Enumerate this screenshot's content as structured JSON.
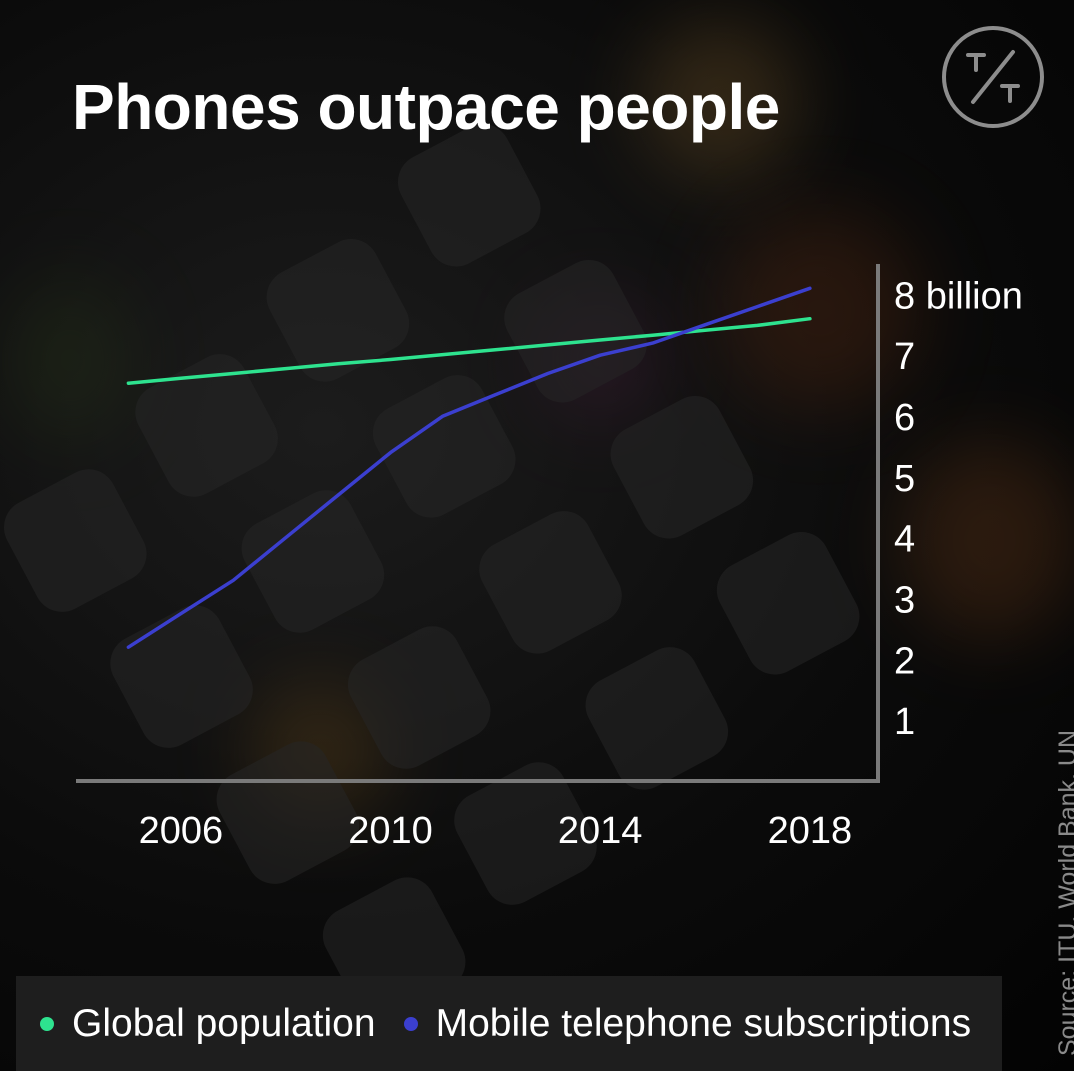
{
  "title": "Phones outpace people",
  "source": "Source: ITU, World Bank, UN",
  "colors": {
    "population": "#2ee38f",
    "subscriptions": "#3b3fcf",
    "axis": "#7a7a7a"
  },
  "icons": {
    "logo": "tt-logo-icon"
  },
  "legend": [
    {
      "label": "Global population",
      "color": "#2ee38f"
    },
    {
      "label": "Mobile telephone subscriptions",
      "color": "#3b3fcf"
    }
  ],
  "chart_data": {
    "type": "line",
    "title": "Phones outpace people",
    "x": [
      2005,
      2006,
      2007,
      2008,
      2009,
      2010,
      2011,
      2012,
      2013,
      2014,
      2015,
      2016,
      2017,
      2018
    ],
    "series": [
      {
        "name": "Global population",
        "values": [
          6.54,
          6.62,
          6.7,
          6.78,
          6.86,
          6.93,
          7.01,
          7.09,
          7.17,
          7.25,
          7.33,
          7.41,
          7.49,
          7.6
        ]
      },
      {
        "name": "Mobile telephone subscriptions",
        "values": [
          2.2,
          2.75,
          3.3,
          4.0,
          4.7,
          5.4,
          6.0,
          6.35,
          6.7,
          7.0,
          7.2,
          7.5,
          7.8,
          8.1
        ]
      }
    ],
    "x_ticks": [
      {
        "value": 2006,
        "label": "2006"
      },
      {
        "value": 2010,
        "label": "2010"
      },
      {
        "value": 2014,
        "label": "2014"
      },
      {
        "value": 2018,
        "label": "2018"
      }
    ],
    "y_ticks": [
      {
        "value": 1,
        "label": "1"
      },
      {
        "value": 2,
        "label": "2"
      },
      {
        "value": 3,
        "label": "3"
      },
      {
        "value": 4,
        "label": "4"
      },
      {
        "value": 5,
        "label": "5"
      },
      {
        "value": 6,
        "label": "6"
      },
      {
        "value": 7,
        "label": "7"
      },
      {
        "value": 8,
        "label": "8 billion"
      }
    ],
    "xlim": [
      2004.0,
      2019.3
    ],
    "ylim": [
      0,
      8.5
    ],
    "grid": false,
    "legend_position": "bottom"
  }
}
